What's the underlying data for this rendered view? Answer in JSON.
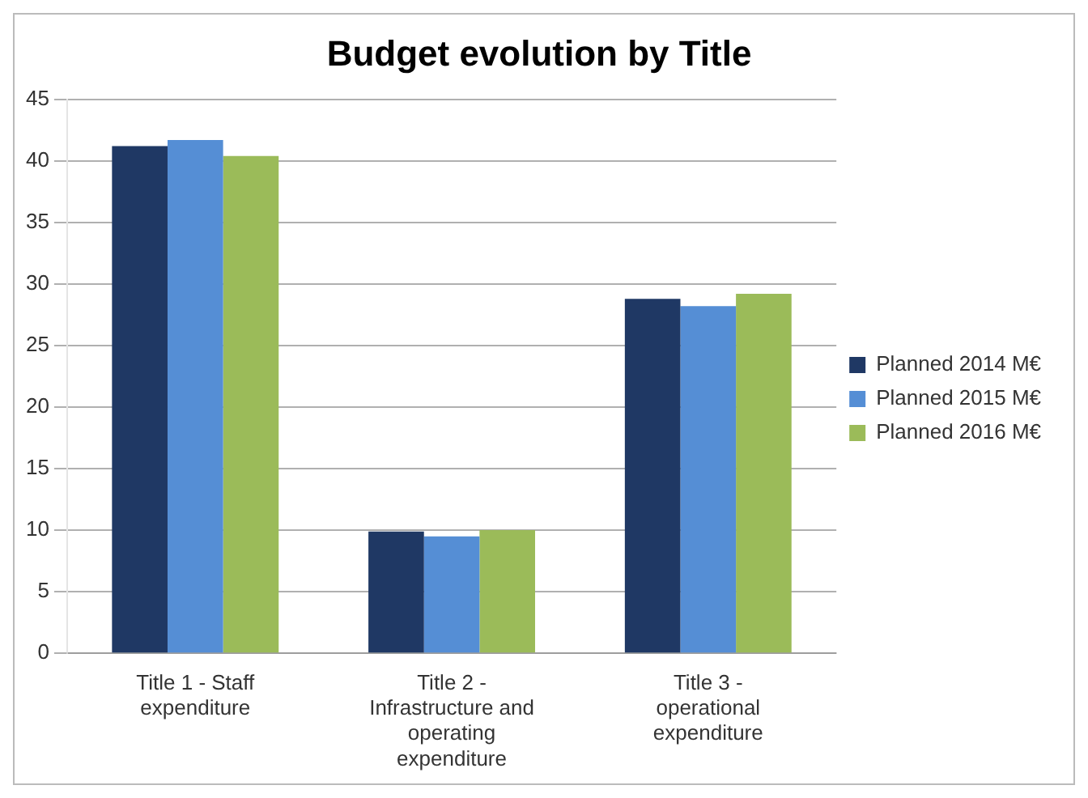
{
  "chart_data": {
    "type": "bar",
    "title": "Budget evolution by Title",
    "categories": [
      "Title 1 - Staff expenditure",
      "Title 2 - Infrastructure and operating expenditure",
      "Title 3 - operational expenditure"
    ],
    "series": [
      {
        "name": "Planned 2014 M€",
        "color": "#1f3864",
        "values": [
          41.2,
          9.9,
          28.8
        ]
      },
      {
        "name": "Planned 2015 M€",
        "color": "#558ed5",
        "values": [
          41.7,
          9.5,
          28.2
        ]
      },
      {
        "name": "Planned 2016 M€",
        "color": "#9bbb59",
        "values": [
          40.4,
          10.0,
          29.2
        ]
      }
    ],
    "ylim": [
      0,
      45
    ],
    "yticks": [
      0,
      5,
      10,
      15,
      20,
      25,
      30,
      35,
      40,
      45
    ],
    "grid": "y",
    "legend": "right"
  }
}
